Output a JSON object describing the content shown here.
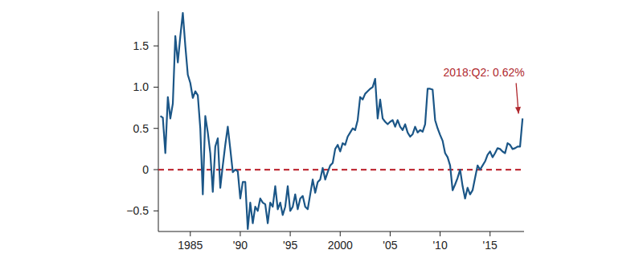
{
  "chart_data": {
    "type": "line",
    "x": [
      1982,
      1982.25,
      1982.5,
      1982.75,
      1983,
      1983.25,
      1983.5,
      1983.75,
      1984,
      1984.25,
      1984.5,
      1984.75,
      1985,
      1985.25,
      1985.5,
      1985.75,
      1986,
      1986.25,
      1986.5,
      1986.75,
      1987,
      1987.25,
      1987.5,
      1987.75,
      1988,
      1988.25,
      1988.5,
      1988.75,
      1989,
      1989.25,
      1989.5,
      1989.75,
      1990,
      1990.25,
      1990.5,
      1990.75,
      1991,
      1991.25,
      1991.5,
      1991.75,
      1992,
      1992.25,
      1992.5,
      1992.75,
      1993,
      1993.25,
      1993.5,
      1993.75,
      1994,
      1994.25,
      1994.5,
      1994.75,
      1995,
      1995.25,
      1995.5,
      1995.75,
      1996,
      1996.25,
      1996.5,
      1996.75,
      1997,
      1997.25,
      1997.5,
      1997.75,
      1998,
      1998.25,
      1998.5,
      1998.75,
      1999,
      1999.25,
      1999.5,
      1999.75,
      2000,
      2000.25,
      2000.5,
      2000.75,
      2001,
      2001.25,
      2001.5,
      2001.75,
      2002,
      2002.25,
      2002.5,
      2002.75,
      2003,
      2003.25,
      2003.5,
      2003.75,
      2004,
      2004.25,
      2004.5,
      2004.75,
      2005,
      2005.25,
      2005.5,
      2005.75,
      2006,
      2006.25,
      2006.5,
      2006.75,
      2007,
      2007.25,
      2007.5,
      2007.75,
      2008,
      2008.25,
      2008.5,
      2008.75,
      2009,
      2009.25,
      2009.5,
      2009.75,
      2010,
      2010.25,
      2010.5,
      2010.75,
      2011,
      2011.25,
      2011.5,
      2011.75,
      2012,
      2012.25,
      2012.5,
      2012.75,
      2013,
      2013.25,
      2013.5,
      2013.75,
      2014,
      2014.25,
      2014.5,
      2014.75,
      2015,
      2015.25,
      2015.5,
      2015.75,
      2016,
      2016.25,
      2016.5,
      2016.75,
      2017,
      2017.25,
      2017.5,
      2017.75,
      2018,
      2018.25
    ],
    "series": [
      {
        "color": "#1b5687",
        "values": [
          0.65,
          0.63,
          0.2,
          0.88,
          0.62,
          0.8,
          1.62,
          1.3,
          1.62,
          1.9,
          1.5,
          1.15,
          1.05,
          0.87,
          0.95,
          0.9,
          0.5,
          -0.3,
          0.65,
          0.45,
          0.2,
          -0.27,
          0.28,
          0.38,
          -0.22,
          0.05,
          0.3,
          0.52,
          0.25,
          -0.03,
          0.0,
          -0.02,
          -0.35,
          -0.15,
          -0.15,
          -0.72,
          -0.4,
          -0.65,
          -0.45,
          -0.5,
          -0.35,
          -0.4,
          -0.42,
          -0.65,
          -0.4,
          -0.45,
          -0.2,
          -0.48,
          -0.4,
          -0.55,
          -0.45,
          -0.2,
          -0.5,
          -0.45,
          -0.3,
          -0.48,
          -0.35,
          -0.32,
          -0.45,
          -0.48,
          -0.3,
          -0.12,
          -0.28,
          -0.15,
          -0.12,
          0.02,
          -0.12,
          -0.03,
          0.05,
          0.08,
          0.25,
          0.3,
          0.22,
          0.32,
          0.3,
          0.4,
          0.45,
          0.5,
          0.48,
          0.6,
          0.88,
          0.85,
          0.92,
          0.95,
          0.98,
          1.0,
          1.1,
          0.62,
          0.85,
          0.62,
          0.58,
          0.55,
          0.58,
          0.6,
          0.52,
          0.6,
          0.52,
          0.48,
          0.55,
          0.45,
          0.4,
          0.43,
          0.52,
          0.45,
          0.48,
          0.46,
          0.55,
          0.98,
          0.98,
          0.97,
          0.6,
          0.5,
          0.42,
          0.35,
          0.2,
          0.15,
          0.05,
          -0.25,
          -0.18,
          -0.1,
          0.0,
          -0.2,
          -0.35,
          -0.22,
          -0.3,
          -0.25,
          -0.1,
          0.05,
          0.0,
          0.05,
          0.1,
          0.18,
          0.22,
          0.15,
          0.2,
          0.26,
          0.25,
          0.22,
          0.2,
          0.32,
          0.3,
          0.25,
          0.26,
          0.28,
          0.28,
          0.62
        ]
      }
    ],
    "xlim": [
      1981.8,
      2018.4
    ],
    "ylim": [
      -0.75,
      1.92
    ],
    "xticks": [
      1985,
      {
        "value": 1990,
        "label": "'90"
      },
      {
        "value": 1995,
        "label": "'95"
      },
      2000,
      {
        "value": 2005,
        "label": "'05"
      },
      {
        "value": 2010,
        "label": "'10"
      },
      {
        "value": 2015,
        "label": "'15"
      }
    ],
    "yticks": [
      {
        "value": -0.5,
        "label": "−0.5"
      },
      0,
      0.5,
      {
        "value": 1,
        "label": "1.0"
      },
      1.5
    ],
    "hline": {
      "value": 0,
      "color": "#c0303a",
      "line_style": "dashed"
    },
    "annotations": [
      {
        "text": "2018:Q2: 0.62%",
        "x": 2018.25,
        "y": 0.62,
        "color": "#b0282e"
      }
    ]
  }
}
